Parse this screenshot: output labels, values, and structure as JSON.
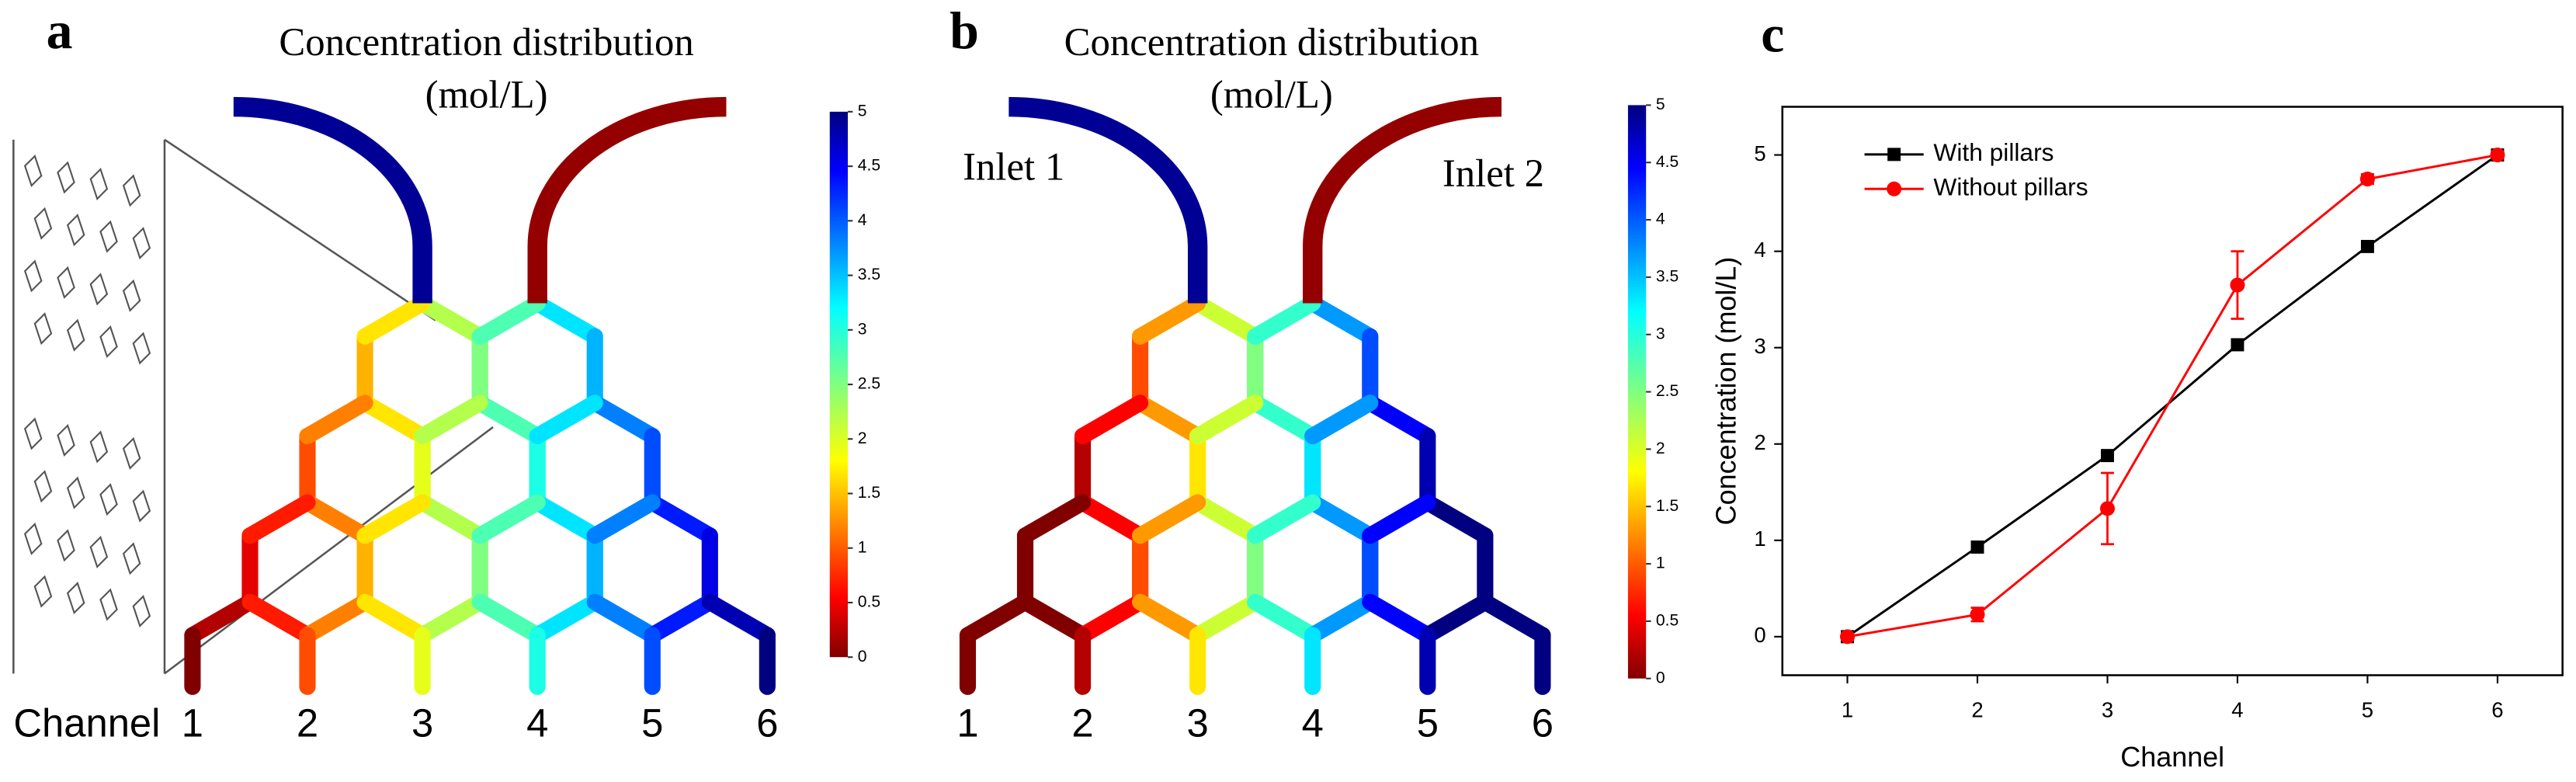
{
  "panels": [
    {
      "label": "a",
      "title": "Concentration distribution",
      "unit": "(mol/L)",
      "channel_title": "Channel",
      "channels": [
        "1",
        "2",
        "3",
        "4",
        "5",
        "6"
      ],
      "colorbar_ticks": [
        0,
        0.5,
        1,
        1.5,
        2,
        2.5,
        3,
        3.5,
        4,
        4.5,
        5
      ]
    },
    {
      "label": "b",
      "title": "Concentration distribution",
      "unit": "(mol/L)",
      "inlets": [
        "Inlet 1",
        "Inlet 2"
      ],
      "channels": [
        "1",
        "2",
        "3",
        "4",
        "5",
        "6"
      ],
      "colorbar_ticks": [
        0,
        0.5,
        1,
        1.5,
        2,
        2.5,
        3,
        3.5,
        4,
        4.5,
        5
      ]
    }
  ],
  "chart_data": {
    "type": "line",
    "label": "c",
    "xlabel": "Channel",
    "ylabel": "Concentration (mol/L)",
    "x": [
      1,
      2,
      3,
      4,
      5,
      6
    ],
    "xlim": [
      0.5,
      6.5
    ],
    "ylim": [
      -0.4,
      5.5
    ],
    "xticks": [
      1,
      2,
      3,
      4,
      5,
      6
    ],
    "yticks": [
      0,
      1,
      2,
      3,
      4,
      5
    ],
    "legend": "upper left",
    "series": [
      {
        "name": "With pillars",
        "color": "#000000",
        "marker": "square",
        "values": [
          0,
          0.93,
          1.88,
          3.03,
          4.05,
          5.0
        ]
      },
      {
        "name": "Without pillars",
        "color": "#ff0000",
        "marker": "circle",
        "values": [
          0,
          0.23,
          1.33,
          3.65,
          4.75,
          5.0
        ],
        "errors": [
          0.03,
          0.07,
          0.37,
          0.35,
          0.05,
          0.02
        ]
      }
    ]
  }
}
